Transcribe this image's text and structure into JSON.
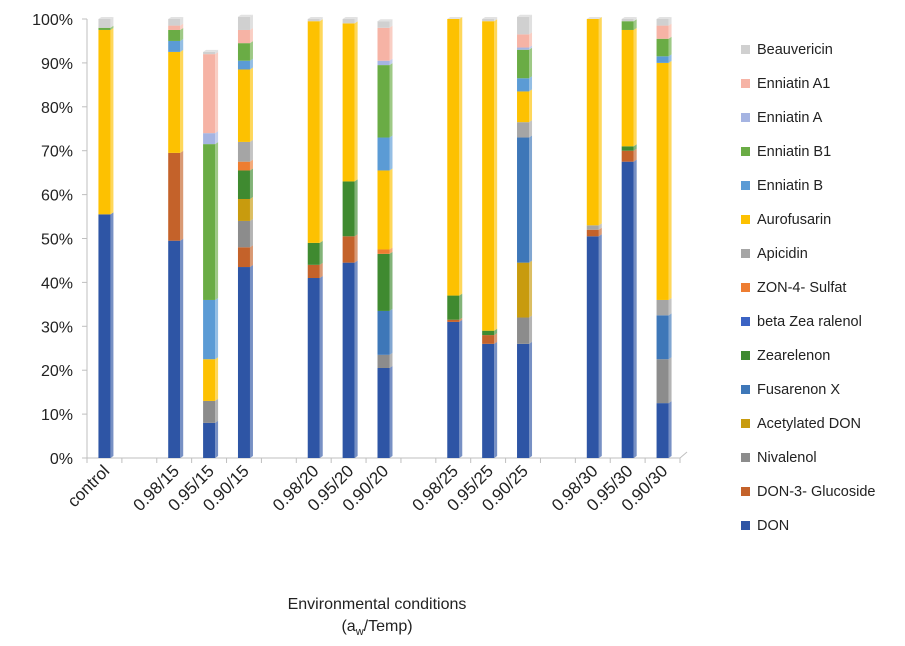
{
  "chart_data": {
    "type": "bar",
    "stacked": true,
    "percent": true,
    "xlabel": "Environmental conditions",
    "xlabel_line2": {
      "prefix": "(a",
      "subscript": "w",
      "suffix": "/Temp)"
    },
    "ylim": [
      0,
      100
    ],
    "yticks": [
      "0%",
      "10%",
      "20%",
      "30%",
      "40%",
      "50%",
      "60%",
      "70%",
      "80%",
      "90%",
      "100%"
    ],
    "grid": false,
    "legend_position": "right",
    "categories": [
      "control",
      "",
      "0.98/15",
      "0.95/15",
      "0.90/15",
      "",
      "0.98/20",
      "0.95/20",
      "0.90/20",
      "",
      "0.98/25",
      "0.95/25",
      "0.90/25",
      "",
      "0.98/30",
      "0.95/30",
      "0.90/30"
    ],
    "series": [
      {
        "name": "DON",
        "color": "#2e55a5",
        "values": [
          55.5,
          0,
          49.5,
          8,
          43.5,
          0,
          41,
          44.5,
          20.5,
          0,
          31,
          26,
          26,
          0,
          50.5,
          67.5,
          12.5
        ]
      },
      {
        "name": "DON-3- Glucoside",
        "color": "#c4622a",
        "values": [
          0,
          0,
          20,
          0,
          4.5,
          0,
          3,
          6,
          0,
          0,
          0.5,
          2,
          0,
          0,
          1.5,
          2.5,
          0
        ]
      },
      {
        "name": "Nivalenol",
        "color": "#8c8c8c",
        "values": [
          0,
          0,
          0,
          5,
          6,
          0,
          0,
          0,
          3,
          0,
          0,
          0,
          6,
          0,
          0,
          0,
          10
        ]
      },
      {
        "name": "Acetylated DON",
        "color": "#c89b0e",
        "values": [
          0,
          0,
          0,
          0,
          5,
          0,
          0,
          0,
          0,
          0,
          0,
          0,
          12.5,
          0,
          0,
          0,
          0
        ]
      },
      {
        "name": "Fusarenon X",
        "color": "#3e77b8",
        "values": [
          0,
          0,
          0,
          0,
          0,
          0,
          0,
          0,
          10,
          0,
          0,
          0,
          28.5,
          0,
          0,
          0,
          10
        ]
      },
      {
        "name": "Zearelenon",
        "color": "#3f8a30",
        "values": [
          0,
          0,
          0,
          0,
          6.5,
          0,
          5,
          12.5,
          13,
          0,
          5.5,
          1,
          0,
          0,
          0,
          1,
          0
        ]
      },
      {
        "name": "beta Zea ralenol",
        "color": "#3b63c4",
        "values": [
          0,
          0,
          0,
          0,
          0,
          0,
          0,
          0,
          0,
          0,
          0,
          0,
          0,
          0,
          0,
          0,
          0
        ]
      },
      {
        "name": "ZON-4- Sulfat",
        "color": "#ee7d31",
        "values": [
          0,
          0,
          0,
          0,
          2,
          0,
          0,
          0,
          1,
          0,
          0,
          0,
          0,
          0,
          0,
          0,
          0
        ]
      },
      {
        "name": "Apicidin",
        "color": "#a5a5a5",
        "values": [
          0,
          0,
          0,
          0,
          4.5,
          0,
          0,
          0,
          0,
          0,
          0,
          0,
          3.5,
          0,
          1,
          0,
          3.5
        ]
      },
      {
        "name": "Aurofusarin",
        "color": "#fdc101",
        "values": [
          42,
          0,
          23,
          9.5,
          16.5,
          0,
          50.5,
          36,
          18,
          0,
          63,
          70.5,
          7,
          0,
          47,
          26.5,
          54
        ]
      },
      {
        "name": "Enniatin B",
        "color": "#5b9bd5",
        "values": [
          0,
          0,
          2.5,
          13.5,
          2,
          0,
          0,
          0,
          7.5,
          0,
          0,
          0,
          3,
          0,
          0,
          0,
          1.5
        ]
      },
      {
        "name": "Enniatin B1",
        "color": "#6aac45",
        "values": [
          0.5,
          0,
          2.5,
          35.5,
          4,
          0,
          0,
          0,
          16.5,
          0,
          0,
          0,
          6.5,
          0,
          0,
          2,
          4
        ]
      },
      {
        "name": "Enniatin A",
        "color": "#a5b4e2",
        "values": [
          0,
          0,
          0,
          2.5,
          0,
          0,
          0,
          0,
          1,
          0,
          0,
          0,
          0.5,
          0,
          0,
          0,
          0
        ]
      },
      {
        "name": "Enniatin A1",
        "color": "#f6b3a5",
        "values": [
          0,
          0,
          1,
          18,
          3,
          0,
          0,
          0,
          7.5,
          0,
          0,
          0,
          3,
          0,
          0,
          0,
          3
        ]
      },
      {
        "name": "Beauvericin",
        "color": "#d0d0d0",
        "values": [
          2,
          0,
          1.5,
          0.5,
          3,
          0,
          0.5,
          1,
          1.5,
          0,
          0,
          0.5,
          4,
          0,
          0,
          0.5,
          1.5
        ]
      }
    ]
  }
}
